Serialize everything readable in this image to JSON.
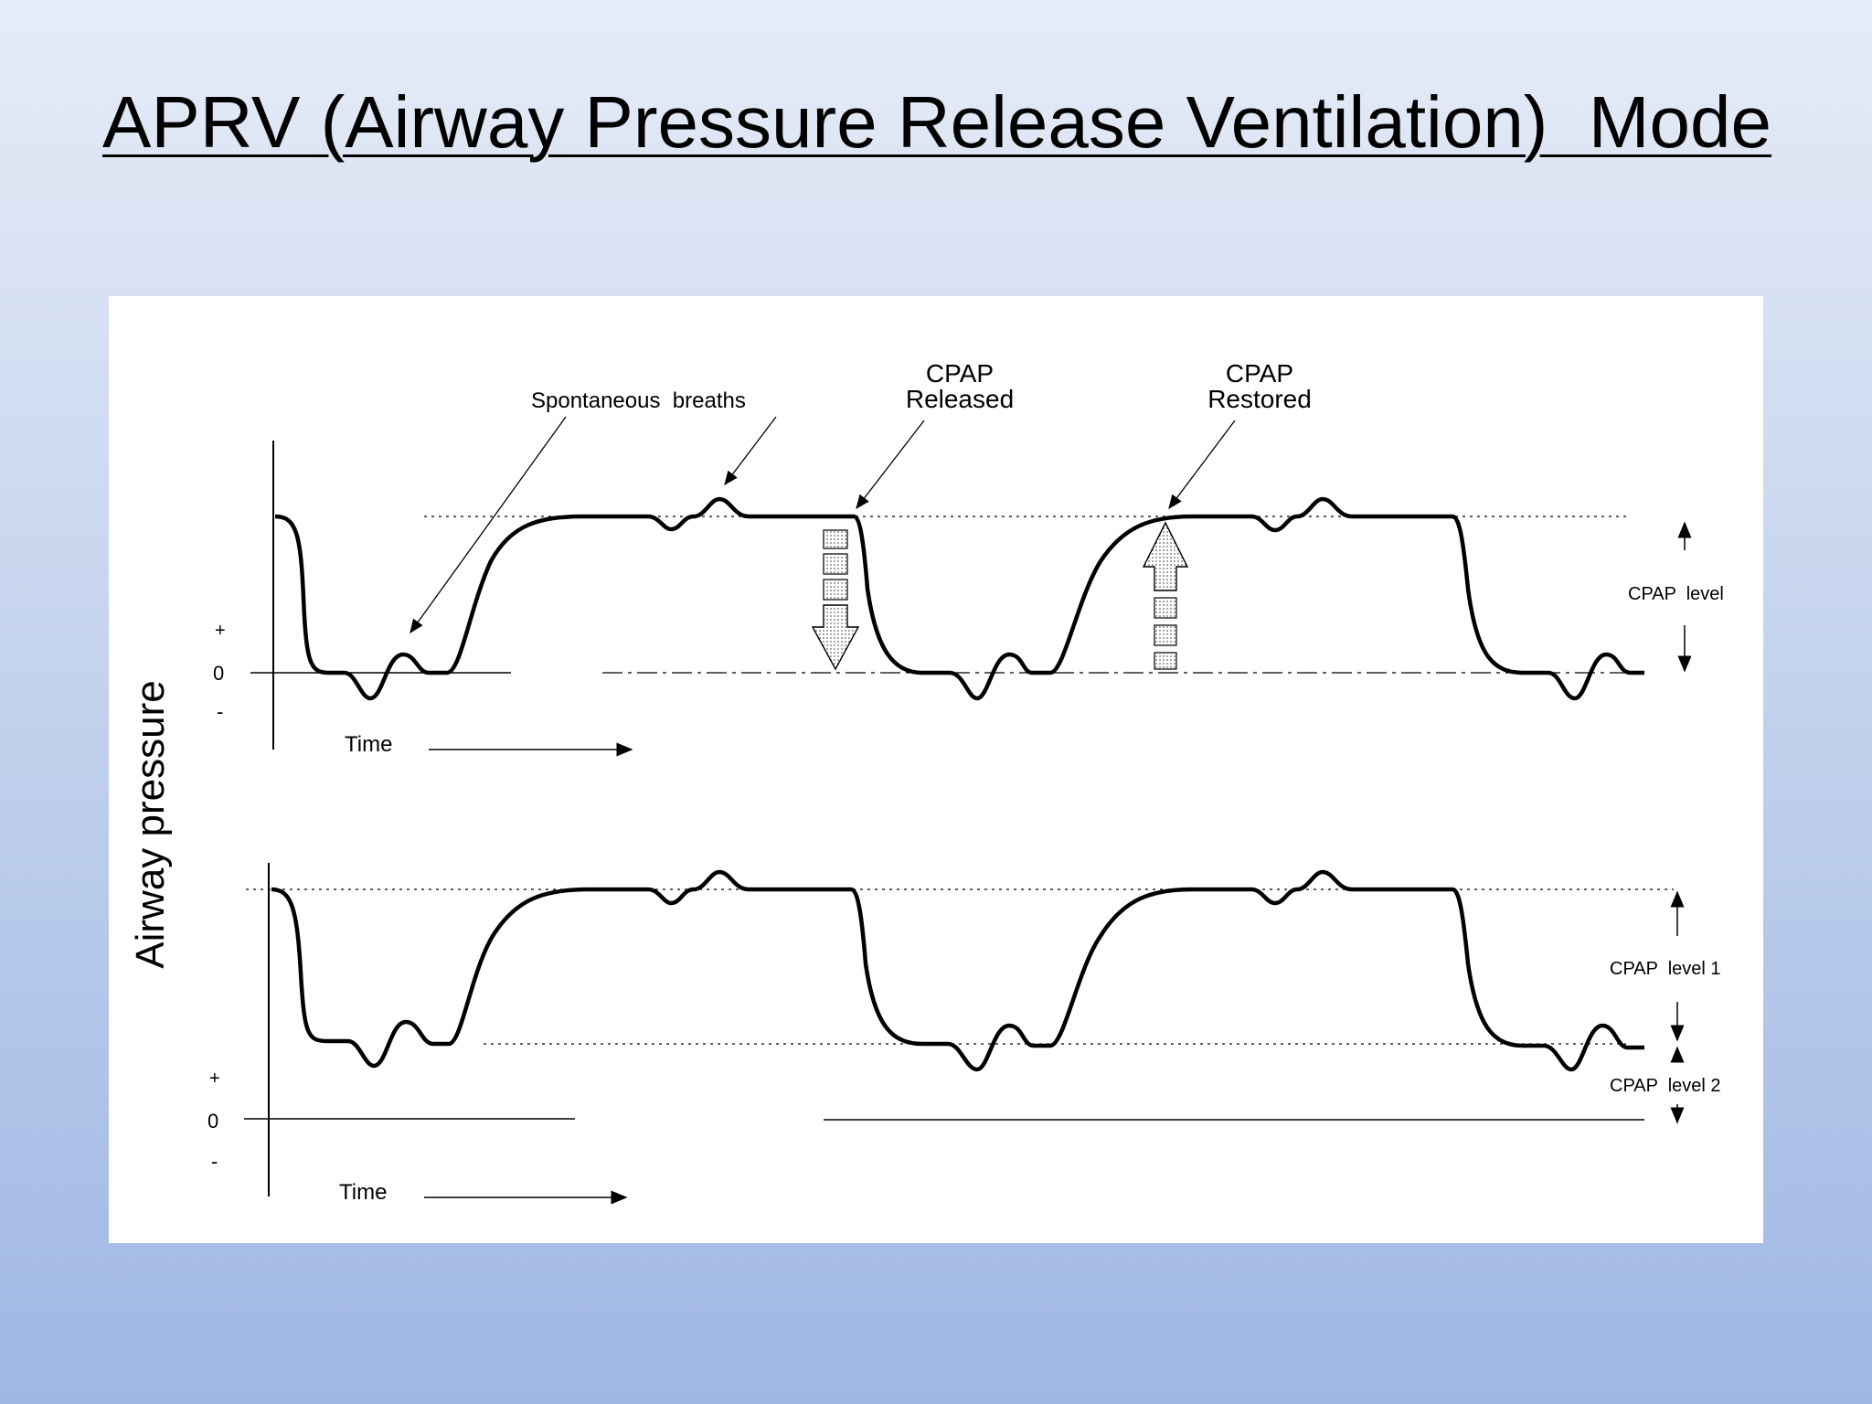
{
  "slide": {
    "title": "APRV (Airway Pressure Release Ventilation)  Mode"
  },
  "diagram": {
    "y_axis_label": "Airway pressure",
    "top_panel": {
      "annotation_spontaneous": "Spontaneous  breaths",
      "annotation_released_line1": "CPAP",
      "annotation_released_line2": "Released",
      "annotation_restored_line1": "CPAP",
      "annotation_restored_line2": "Restored",
      "level_label": "CPAP  level",
      "tick_plus": "+",
      "tick_zero": "0",
      "tick_minus": "-",
      "time_label": "Time"
    },
    "bottom_panel": {
      "level1_label": "CPAP  level 1",
      "level2_label": "CPAP  level 2",
      "tick_plus": "+",
      "tick_zero": "0",
      "tick_minus": "-",
      "time_label": "Time"
    }
  }
}
